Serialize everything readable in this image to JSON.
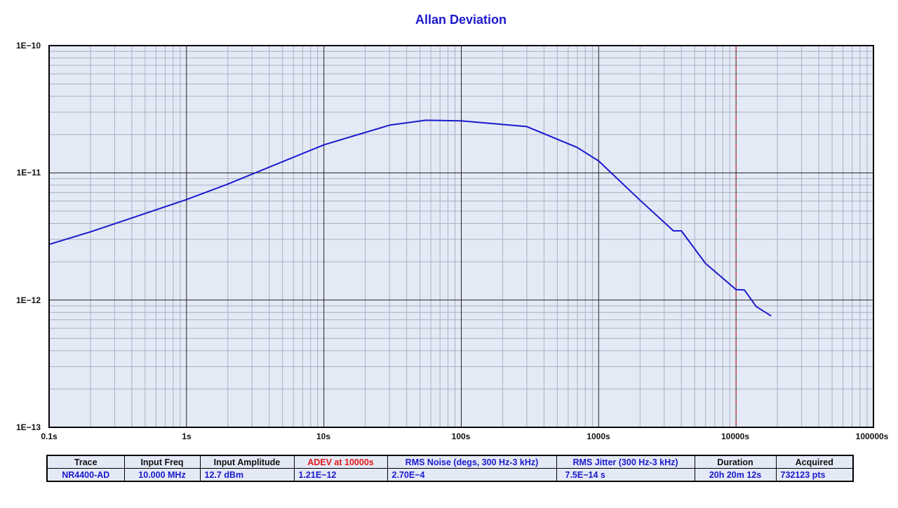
{
  "chart_data": {
    "type": "line",
    "title": "Allan Deviation",
    "xlabel": "",
    "ylabel": "",
    "xscale": "log",
    "yscale": "log",
    "xlim": [
      0.1,
      100000
    ],
    "ylim": [
      1e-13,
      1e-10
    ],
    "x_tick_labels": [
      "0.1s",
      "1s",
      "10s",
      "100s",
      "1000s",
      "10000s",
      "100000s"
    ],
    "y_tick_labels": [
      "1E−10",
      "1E−11",
      "1E−12",
      "1E−13"
    ],
    "grid": true,
    "marker_line": {
      "x": 10000,
      "style": "dashed",
      "color": "#d02020"
    },
    "series": [
      {
        "name": "NR4400-AD",
        "color": "#1a1acc",
        "x": [
          0.1,
          0.2,
          1,
          2,
          10,
          30,
          55,
          100,
          300,
          700,
          1000,
          2000,
          3500,
          4000,
          6000,
          10000,
          11500,
          14000,
          18000
        ],
        "values": [
          2.74e-12,
          3.44e-12,
          6.17e-12,
          8.17e-12,
          1.66e-11,
          2.37e-11,
          2.59e-11,
          2.56e-11,
          2.31e-11,
          1.58e-11,
          1.24e-11,
          6.1e-12,
          3.5e-12,
          3.5e-12,
          1.94e-12,
          1.21e-12,
          1.2e-12,
          8.9e-13,
          7.5e-13
        ]
      }
    ],
    "legend": "none"
  },
  "table": {
    "headers": [
      "Trace",
      "Input Freq",
      "Input Amplitude",
      "ADEV at 10000s",
      "RMS Noise (degs, 300 Hz-3 kHz)",
      "RMS Jitter (300 Hz-3 kHz)",
      "Duration",
      "Acquired"
    ],
    "values": [
      "NR4400-AD",
      "10.000 MHz",
      "12.7 dBm",
      "1.21E−12",
      "2.70E−4",
      "7.5E−14 s",
      "20h 20m 12s",
      "732123 pts"
    ]
  },
  "colors": {
    "plot_bg": "#e4e9f6",
    "trace": "#1a1acc",
    "marker": "#d02020",
    "title": "#1a1acc",
    "adev_header": "#e01818"
  }
}
